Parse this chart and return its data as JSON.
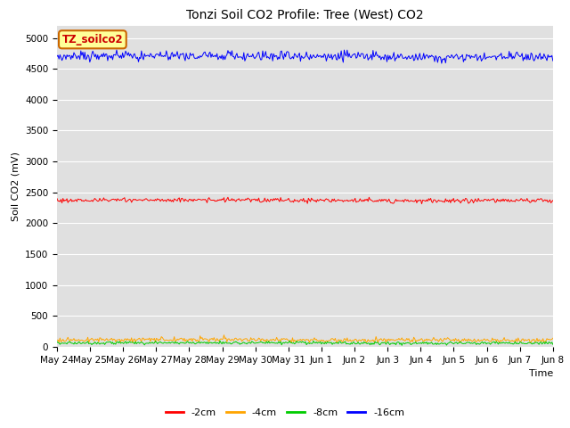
{
  "title": "Tonzi Soil CO2 Profile: Tree (West) CO2",
  "ylabel": "Soil CO2 (mV)",
  "xlabel": "Time",
  "legend_label": "TZ_soilco2",
  "ylim": [
    0,
    5200
  ],
  "yticks": [
    0,
    500,
    1000,
    1500,
    2000,
    2500,
    3000,
    3500,
    4000,
    4500,
    5000
  ],
  "xtick_labels": [
    "May 24",
    "May 25",
    "May 26",
    "May 27",
    "May 28",
    "May 29",
    "May 30",
    "May 31",
    "Jun 1",
    "Jun 2",
    "Jun 3",
    "Jun 4",
    "Jun 5",
    "Jun 6",
    "Jun 7",
    "Jun 8"
  ],
  "bg_color": "#e0e0e0",
  "fig_color": "#ffffff",
  "box_facecolor": "#ffff99",
  "box_edgecolor": "#cc6600",
  "series": [
    {
      "label": "-2cm",
      "color": "#ff0000",
      "base": 2370,
      "noise": 18,
      "seed": 1
    },
    {
      "label": "-4cm",
      "color": "#ffa500",
      "base": 110,
      "noise": 18,
      "seed": 2
    },
    {
      "label": "-8cm",
      "color": "#00cc00",
      "base": 60,
      "noise": 12,
      "seed": 3
    },
    {
      "label": "-16cm",
      "color": "#0000ff",
      "base": 4700,
      "noise": 40,
      "seed": 4
    }
  ],
  "n_points": 500,
  "title_fontsize": 10,
  "label_fontsize": 8,
  "tick_fontsize": 7.5,
  "legend_fontsize": 8
}
